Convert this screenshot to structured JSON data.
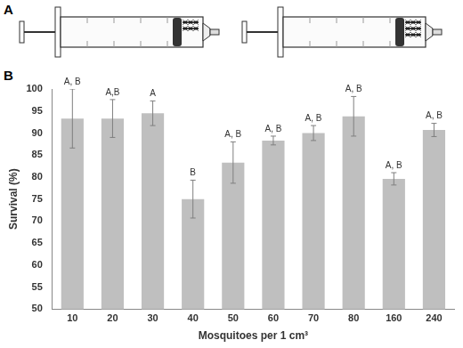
{
  "panel_labels": [
    "A",
    "B"
  ],
  "chart_data": {
    "type": "bar",
    "x_label": "Mosquitoes per 1 cm³",
    "y_label": "Survival (%)",
    "categories": [
      "10",
      "20",
      "30",
      "40",
      "50",
      "60",
      "70",
      "80",
      "160",
      "240"
    ],
    "values": [
      93.3,
      93.3,
      94.5,
      75.0,
      83.3,
      88.3,
      90.0,
      93.8,
      79.6,
      90.7
    ],
    "errors": [
      6.7,
      4.3,
      2.8,
      4.3,
      4.7,
      1.0,
      1.7,
      4.5,
      1.4,
      1.5
    ],
    "significance_labels": [
      "A, B",
      "A,B",
      "A",
      "B",
      "A, B",
      "A, B",
      "A, B",
      "A, B",
      "A, B",
      "A, B"
    ],
    "color": "#bfbfbf",
    "ylim": [
      50,
      100
    ],
    "yticks": [
      50,
      55,
      60,
      65,
      70,
      75,
      80,
      85,
      90,
      95,
      100
    ],
    "grid": false
  }
}
